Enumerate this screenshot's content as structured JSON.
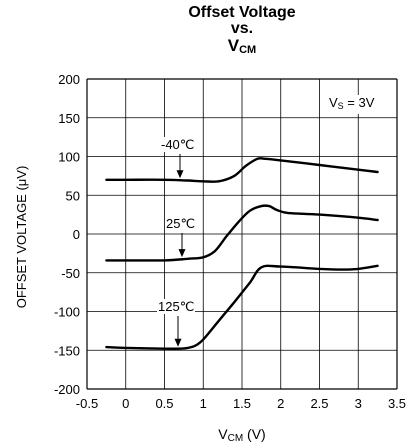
{
  "chart_data": {
    "type": "line",
    "title_line1": "Offset Voltage",
    "title_line2": "vs.",
    "title_line3_main": "V",
    "title_line3_sub": "CM",
    "ylabel": "OFFSET VOLTAGE (μV)",
    "xlabel_main": "V",
    "xlabel_sub": "CM",
    "xlabel_rest": " (V)",
    "xlim": [
      -0.5,
      3.5
    ],
    "ylim": [
      -200,
      200
    ],
    "xticks": [
      "-0.5",
      "0",
      "0.5",
      "1",
      "1.5",
      "2",
      "2.5",
      "3",
      "3.5"
    ],
    "yticks": [
      "200",
      "150",
      "100",
      "50",
      "0",
      "-50",
      "-100",
      "-150",
      "-200"
    ],
    "grid": true,
    "annotation_main": "V",
    "annotation_sub": "S",
    "annotation_rest": " = 3V",
    "series": [
      {
        "name": "-40℃",
        "x": [
          -0.25,
          0.0,
          0.5,
          0.8,
          1.0,
          1.2,
          1.4,
          1.55,
          1.7,
          1.8,
          2.0,
          2.5,
          3.0,
          3.25
        ],
        "y": [
          70,
          70,
          70,
          69,
          68,
          68,
          75,
          88,
          97,
          97,
          95,
          89,
          83,
          80
        ]
      },
      {
        "name": "25℃",
        "x": [
          -0.25,
          0.0,
          0.5,
          0.8,
          1.0,
          1.15,
          1.3,
          1.45,
          1.6,
          1.75,
          1.85,
          1.95,
          2.1,
          2.5,
          3.0,
          3.25
        ],
        "y": [
          -34,
          -34,
          -34,
          -32,
          -30,
          -22,
          -3,
          15,
          30,
          36,
          36,
          31,
          27,
          25,
          21,
          18
        ]
      },
      {
        "name": "125℃",
        "x": [
          -0.25,
          0.0,
          0.5,
          0.7,
          0.8,
          0.9,
          1.0,
          1.2,
          1.4,
          1.6,
          1.75,
          2.0,
          2.5,
          2.8,
          3.0,
          3.25
        ],
        "y": [
          -146,
          -147,
          -148,
          -148,
          -147,
          -144,
          -136,
          -112,
          -88,
          -63,
          -43,
          -42,
          -45,
          -46,
          -45,
          -41
        ]
      }
    ]
  }
}
